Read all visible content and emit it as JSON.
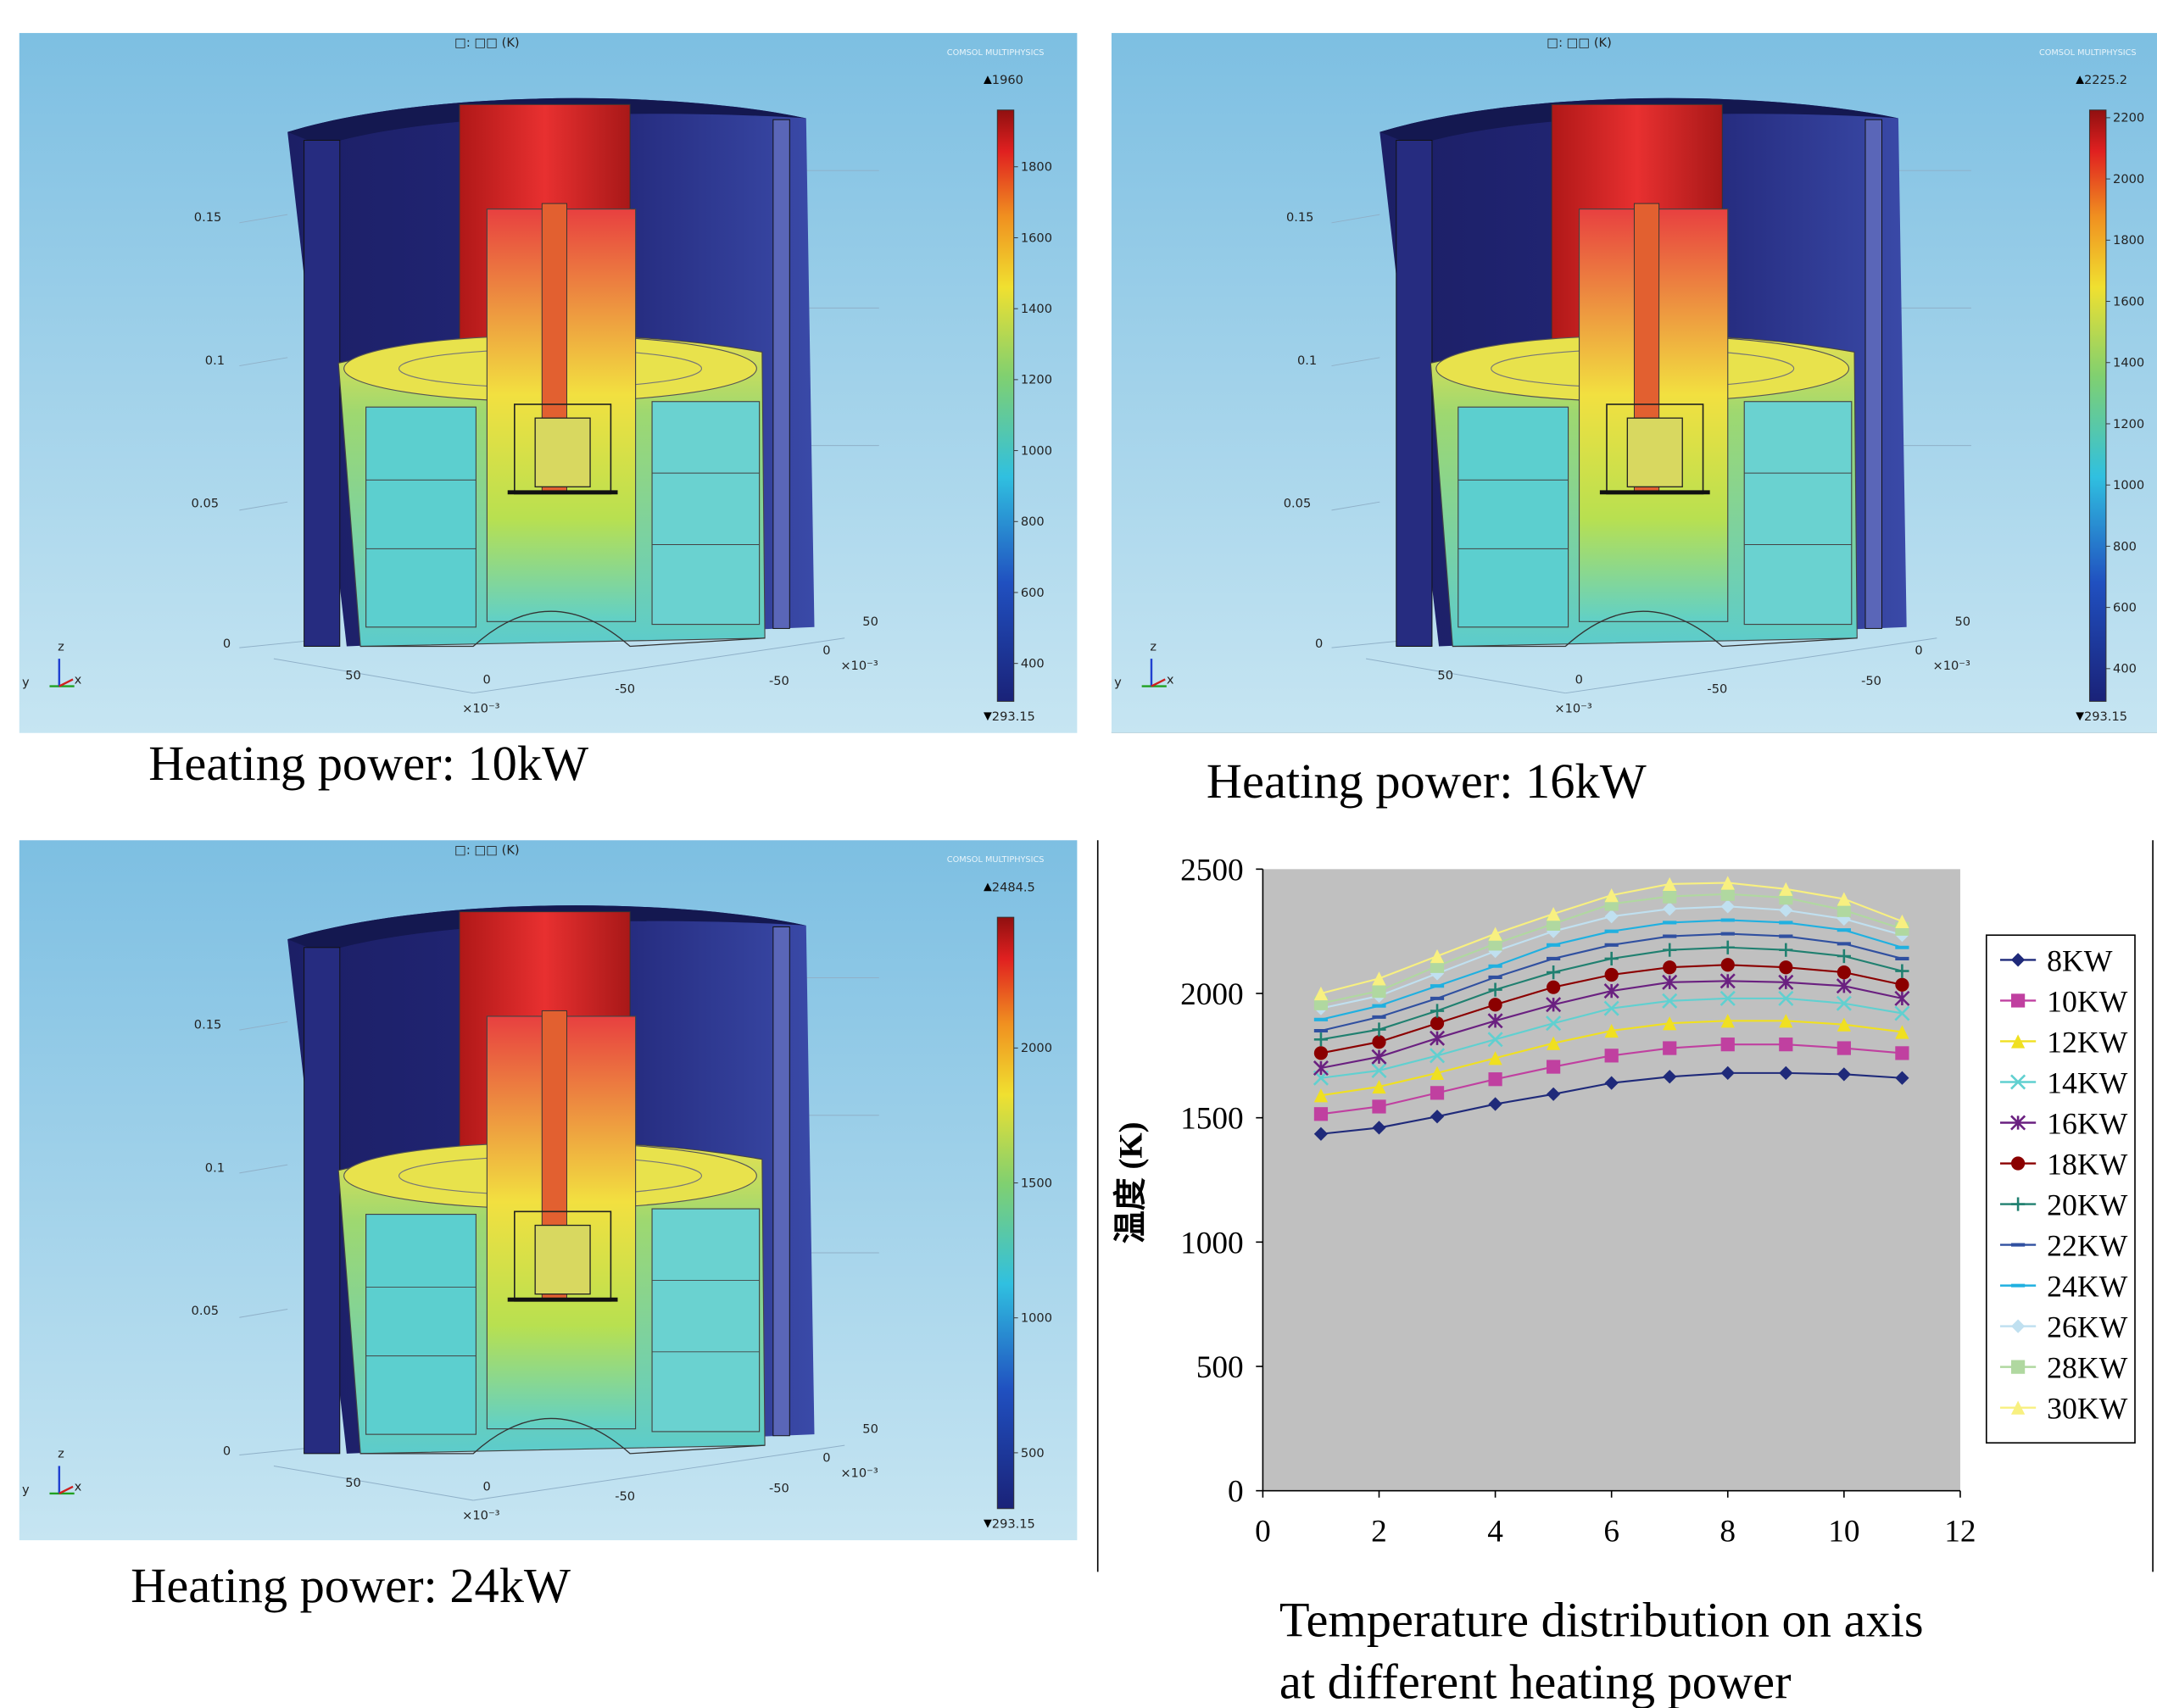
{
  "panels": [
    {
      "title": "□: □□ (K)",
      "logo": "COMSOL MULTIPHYSICS",
      "clim": [
        293.15,
        1960
      ],
      "cbar_ticks": [
        400,
        600,
        800,
        1000,
        1200,
        1400,
        1600,
        1800
      ],
      "axis_labels": [
        "0.15",
        "0.1",
        "0.05",
        "0",
        "50",
        "0",
        "-50",
        "-50",
        "×10⁻³",
        "50",
        "0",
        "×10⁻³"
      ],
      "triad": [
        "z",
        "y",
        "x"
      ],
      "caption": "Heating power:  10kW"
    },
    {
      "title": "□: □□ (K)",
      "logo": "COMSOL MULTIPHYSICS",
      "clim": [
        293.15,
        2225.2
      ],
      "cbar_ticks": [
        400,
        600,
        800,
        1000,
        1200,
        1400,
        1600,
        1800,
        2000,
        2200
      ],
      "axis_labels": [
        "0.15",
        "0.1",
        "0.05",
        "0",
        "50",
        "0",
        "-50",
        "-50",
        "×10⁻³",
        "50",
        "0",
        "×10⁻³"
      ],
      "triad": [
        "z",
        "y",
        "x"
      ],
      "caption": "Heating power:  16kW"
    },
    {
      "title": "□: □□ (K)",
      "logo": "COMSOL MULTIPHYSICS",
      "clim": [
        293.15,
        2484.5
      ],
      "cbar_ticks": [
        500,
        1000,
        1500,
        2000
      ],
      "axis_labels": [
        "0.15",
        "0.1",
        "0.05",
        "0",
        "50",
        "0",
        "-50",
        "-50",
        "×10⁻³",
        "50",
        "0",
        "×10⁻³"
      ],
      "triad": [
        "z",
        "y",
        "x"
      ],
      "caption": "Heating power:  24kW"
    }
  ],
  "chart_data": {
    "type": "line",
    "y_label": "温度 (K)",
    "caption": [
      "Temperature distribution on axis",
      "at different heating power"
    ],
    "x": [
      1,
      2,
      3,
      4,
      5,
      6,
      7,
      8,
      9,
      10,
      11
    ],
    "xlim": [
      0,
      12
    ],
    "xticks": [
      0,
      2,
      4,
      6,
      8,
      10,
      12
    ],
    "ylim": [
      0,
      2500
    ],
    "yticks": [
      0,
      500,
      1000,
      1500,
      2000,
      2500
    ],
    "legend": "right",
    "plot_background": "#c0c0c0",
    "series": [
      {
        "name": "8KW",
        "color": "#1f2a7a",
        "marker": "diamond",
        "values": [
          1435,
          1460,
          1505,
          1555,
          1595,
          1640,
          1665,
          1680,
          1680,
          1675,
          1660
        ]
      },
      {
        "name": "10KW",
        "color": "#c040a0",
        "marker": "square",
        "values": [
          1515,
          1545,
          1600,
          1655,
          1705,
          1750,
          1780,
          1795,
          1795,
          1780,
          1760
        ]
      },
      {
        "name": "12KW",
        "color": "#f0e020",
        "marker": "triangle",
        "values": [
          1590,
          1625,
          1680,
          1740,
          1800,
          1850,
          1880,
          1890,
          1890,
          1875,
          1845
        ]
      },
      {
        "name": "14KW",
        "color": "#60d0d0",
        "marker": "x",
        "values": [
          1660,
          1690,
          1750,
          1815,
          1880,
          1940,
          1970,
          1980,
          1980,
          1960,
          1920
        ]
      },
      {
        "name": "16KW",
        "color": "#6a2080",
        "marker": "star",
        "values": [
          1700,
          1745,
          1820,
          1890,
          1955,
          2010,
          2045,
          2050,
          2045,
          2030,
          1980
        ]
      },
      {
        "name": "18KW",
        "color": "#8b0000",
        "marker": "circle",
        "values": [
          1760,
          1805,
          1880,
          1955,
          2025,
          2075,
          2105,
          2115,
          2105,
          2085,
          2035
        ]
      },
      {
        "name": "20KW",
        "color": "#208070",
        "marker": "plus",
        "values": [
          1815,
          1855,
          1930,
          2015,
          2085,
          2140,
          2175,
          2185,
          2175,
          2150,
          2090
        ]
      },
      {
        "name": "22KW",
        "color": "#3050a0",
        "marker": "dash",
        "values": [
          1850,
          1905,
          1980,
          2065,
          2140,
          2195,
          2230,
          2240,
          2230,
          2200,
          2140
        ]
      },
      {
        "name": "24KW",
        "color": "#20b0e0",
        "marker": "dash",
        "values": [
          1895,
          1950,
          2030,
          2110,
          2195,
          2250,
          2285,
          2295,
          2285,
          2255,
          2185
        ]
      },
      {
        "name": "26KW",
        "color": "#c0e0f0",
        "marker": "diamond",
        "values": [
          1940,
          1990,
          2080,
          2170,
          2250,
          2310,
          2340,
          2350,
          2335,
          2300,
          2235
        ]
      },
      {
        "name": "28KW",
        "color": "#b0d8a0",
        "marker": "square",
        "values": [
          1960,
          2010,
          2110,
          2200,
          2280,
          2360,
          2390,
          2400,
          2385,
          2335,
          2260
        ]
      },
      {
        "name": "30KW",
        "color": "#f8f080",
        "marker": "triangle",
        "values": [
          2000,
          2060,
          2150,
          2240,
          2320,
          2395,
          2440,
          2445,
          2420,
          2380,
          2290
        ]
      }
    ]
  }
}
